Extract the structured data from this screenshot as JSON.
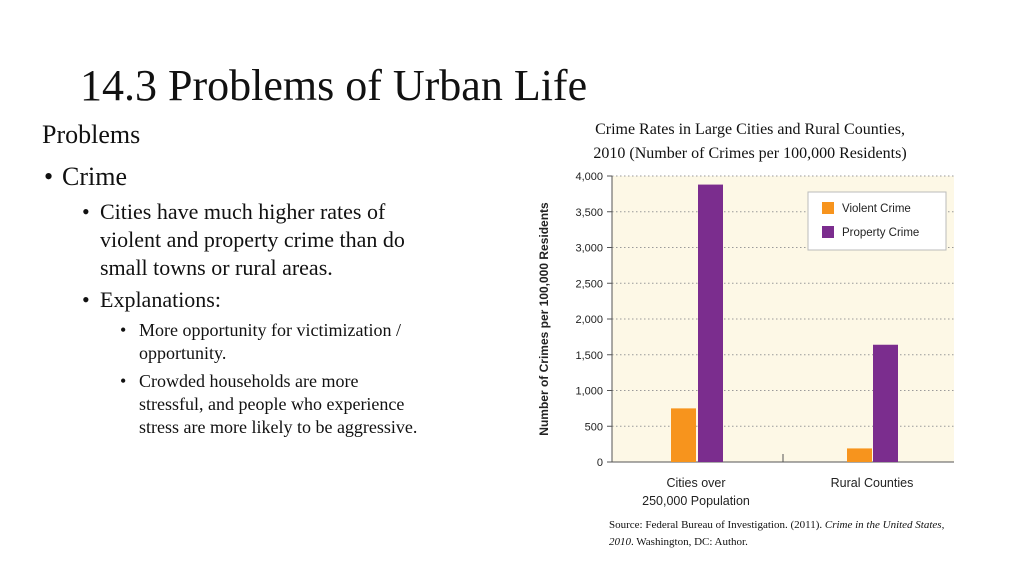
{
  "slide": {
    "title": "14.3 Problems of Urban Life",
    "section_heading": "Problems",
    "bullets": {
      "crime": "Crime",
      "higher_rates": "Cities have much higher rates of violent and property crime than do small towns or rural areas.",
      "explanations": "Explanations:",
      "opportunity": "More opportunity for victimization / opportunity.",
      "crowded": "Crowded households are more stressful, and people who experience stress are more likely to be aggressive."
    }
  },
  "chart_title": {
    "line1": "Crime Rates in Large Cities and Rural Counties,",
    "line2": "2010 (Number of Crimes per 100,000 Residents)"
  },
  "source": {
    "prefix": "Source: Federal Bureau of Investigation. (2011). ",
    "title_italic": "Crime in the United States, 2010",
    "suffix": ". Washington, DC: Author."
  },
  "colors": {
    "violent": "#f7941d",
    "property": "#7b2d8e",
    "plot_bg": "#fdf8e6",
    "grid": "#9a9a9a"
  },
  "chart_data": {
    "type": "bar",
    "title": "Crime Rates in Large Cities and Rural Counties, 2010 (Number of Crimes per 100,000 Residents)",
    "ylabel": "Number of Crimes per 100,000 Residents",
    "xlabel": "",
    "ylim": [
      0,
      4000
    ],
    "yticks": [
      0,
      500,
      1000,
      1500,
      2000,
      2500,
      3000,
      3500,
      4000
    ],
    "ytick_labels": [
      "0",
      "500",
      "1,000",
      "1,500",
      "2,000",
      "2,500",
      "3,000",
      "3,500",
      "4,000"
    ],
    "categories": [
      [
        "Cities over",
        "250,000 Population"
      ],
      [
        "Rural  Counties"
      ]
    ],
    "series": [
      {
        "name": "Violent Crime",
        "values": [
          750,
          190
        ]
      },
      {
        "name": "Property Crime",
        "values": [
          3880,
          1640
        ]
      }
    ],
    "legend_position": "top-right",
    "grid": true
  }
}
